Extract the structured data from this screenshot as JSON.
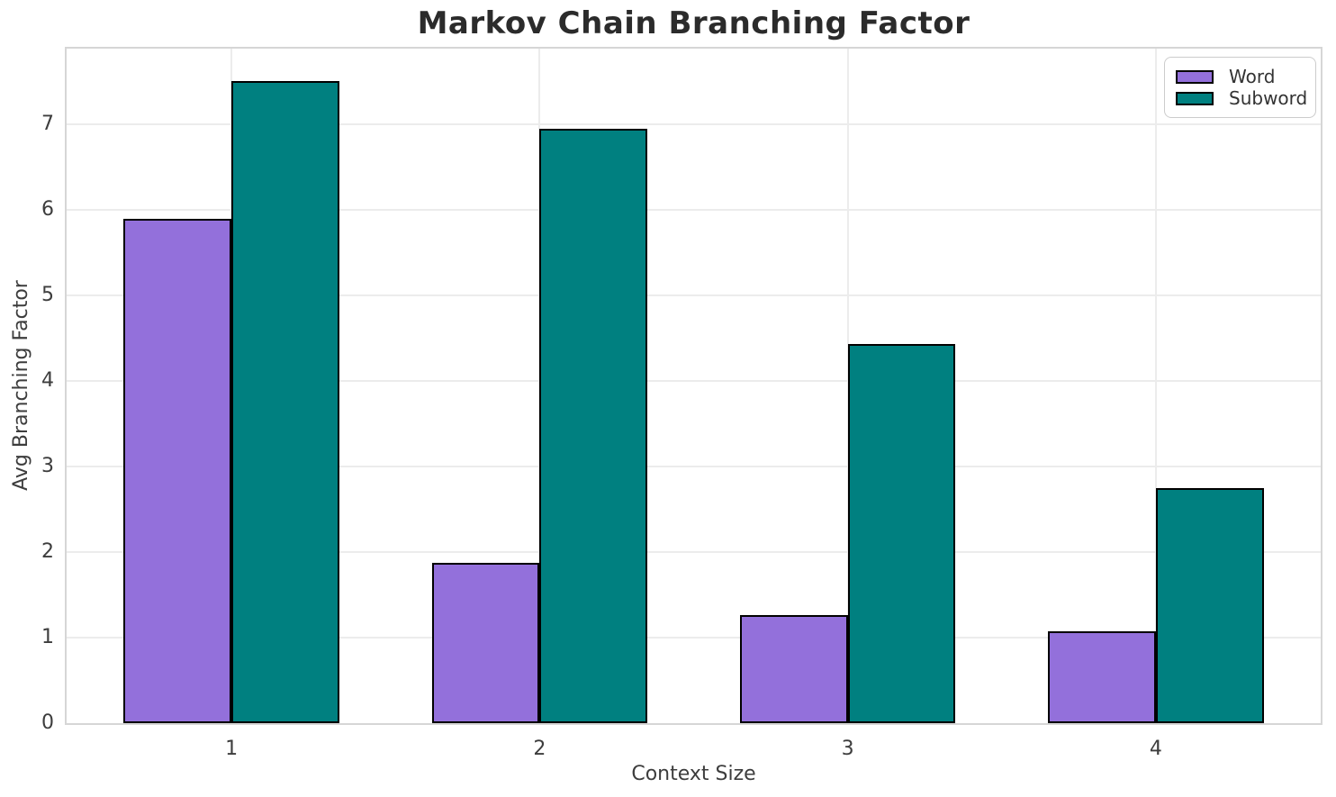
{
  "chart_data": {
    "type": "bar",
    "title": "Markov Chain Branching Factor",
    "xlabel": "Context Size",
    "ylabel": "Avg Branching Factor",
    "categories": [
      "1",
      "2",
      "3",
      "4"
    ],
    "series": [
      {
        "name": "Word",
        "color": "#9370DB",
        "values": [
          5.9,
          1.87,
          1.26,
          1.07
        ]
      },
      {
        "name": "Subword",
        "color": "#008080",
        "values": [
          7.51,
          6.95,
          4.44,
          2.75
        ]
      }
    ],
    "bar_edge_color": "#000000",
    "bar_width_units": 0.35,
    "x_positions": [
      1,
      2,
      3,
      4
    ],
    "xlim": [
      0.465,
      4.535
    ],
    "ylim": [
      0,
      7.89
    ],
    "yticks": [
      0,
      1,
      2,
      3,
      4,
      5,
      6,
      7
    ],
    "grid": true,
    "grid_color": "#ececec",
    "spine_color": "#d6d6d6",
    "legend_position": "upper right",
    "title_color": "#2b2b2b",
    "tick_label_color": "#3d3d3d"
  }
}
